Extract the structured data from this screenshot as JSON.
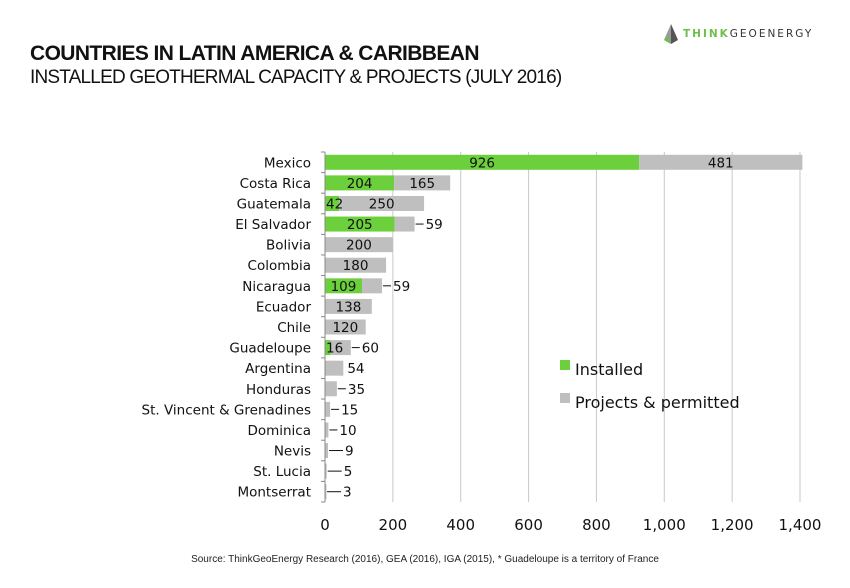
{
  "header": {
    "title": "COUNTRIES IN LATIN AMERICA & CARIBBEAN",
    "subtitle": "INSTALLED GEOTHERMAL CAPACITY & PROJECTS (JULY 2016)",
    "logo_think": "THINK",
    "logo_geo": "GEOENERGY"
  },
  "footer": {
    "source": "Source: ThinkGeoEnergy Research (2016), GEA (2016), IGA (2015), * Guadeloupe is a territory of France"
  },
  "colors": {
    "installed": "#6ccf3c",
    "projects": "#bfbfbf",
    "grid": "#c8c8c8"
  },
  "chart_data": {
    "type": "bar",
    "orientation": "horizontal",
    "stacked": true,
    "title": "COUNTRIES IN LATIN AMERICA & CARIBBEAN",
    "subtitle": "INSTALLED GEOTHERMAL CAPACITY & PROJECTS (JULY 2016)",
    "xlabel": "",
    "ylabel": "",
    "xlim": [
      0,
      1400
    ],
    "xticks": [
      0,
      200,
      400,
      600,
      800,
      1000,
      1200,
      1400
    ],
    "xtick_labels": [
      "0",
      "200",
      "400",
      "600",
      "800",
      "1,000",
      "1,200",
      "1,400"
    ],
    "grid": true,
    "legend_position": "right-middle",
    "categories": [
      "Mexico",
      "Costa Rica",
      "Guatemala",
      "El Salvador",
      "Bolivia",
      "Colombia",
      "Nicaragua",
      "Ecuador",
      "Chile",
      "Guadeloupe",
      "Argentina",
      "Honduras",
      "St. Vincent & Grenadines",
      "Dominica",
      "Nevis",
      "St. Lucia",
      "Montserrat"
    ],
    "series": [
      {
        "name": "Installed",
        "values": [
          926,
          204,
          42,
          205,
          0,
          0,
          109,
          0,
          0,
          16,
          0,
          0,
          0,
          0,
          0,
          0,
          0
        ]
      },
      {
        "name": "Projects & permitted",
        "values": [
          481,
          165,
          250,
          59,
          200,
          180,
          59,
          138,
          120,
          60,
          54,
          35,
          15,
          10,
          9,
          5,
          3
        ]
      }
    ]
  }
}
